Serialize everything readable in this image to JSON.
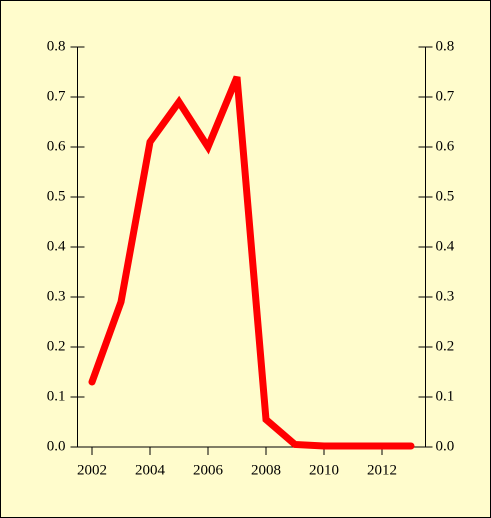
{
  "chart_data": {
    "type": "line",
    "x": [
      2002,
      2003,
      2004,
      2005,
      2006,
      2007,
      2008,
      2009,
      2010,
      2011,
      2012,
      2013
    ],
    "values": [
      0.13,
      0.29,
      0.61,
      0.69,
      0.6,
      0.74,
      0.055,
      0.005,
      0.002,
      0.002,
      0.002,
      0.002
    ],
    "color": "#ff0000",
    "xlim": [
      2001.5,
      2013.5
    ],
    "xticks": [
      2002,
      2004,
      2006,
      2008,
      2010,
      2012
    ],
    "ylim": [
      0,
      0.8
    ],
    "yticks": [
      {
        "value": 0,
        "label": "0.0"
      },
      0.1,
      0.2,
      0.3,
      0.4,
      0.5,
      0.6,
      0.7,
      0.8
    ],
    "y2lim": [
      0,
      0.8
    ],
    "y2ticks": [
      {
        "value": 0,
        "label": "0.0"
      },
      0.1,
      0.2,
      0.3,
      0.4,
      0.5,
      0.6,
      0.7,
      0.8
    ]
  }
}
